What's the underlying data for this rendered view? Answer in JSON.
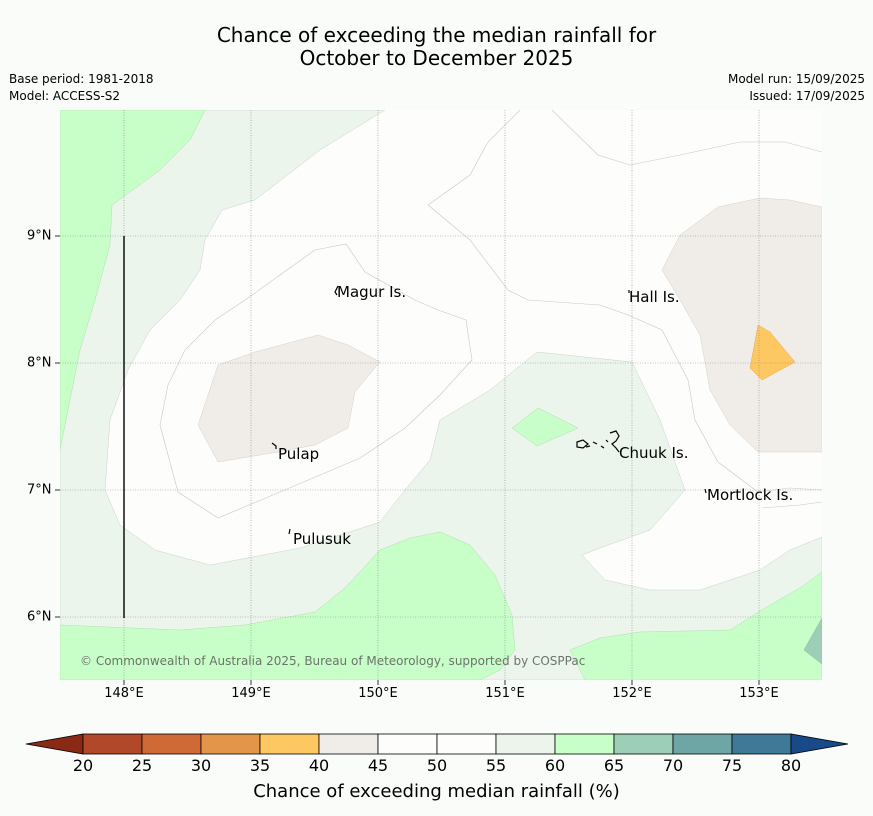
{
  "title": {
    "line1": "Chance of exceeding the median rainfall for",
    "line2": "October to December 2025"
  },
  "info": {
    "base_period": "Base period: 1981-2018",
    "model": "Model: ACCESS-S2",
    "model_run": "Model run: 15/09/2025",
    "issued": "Issued: 17/09/2025"
  },
  "map": {
    "lon_ticks": [
      "148°E",
      "149°E",
      "150°E",
      "151°E",
      "152°E",
      "153°E"
    ],
    "lat_ticks": [
      "9°N",
      "8°N",
      "7°N",
      "6°N"
    ],
    "places": [
      {
        "name": "Magur Is."
      },
      {
        "name": "Hall Is."
      },
      {
        "name": "Pulap"
      },
      {
        "name": "Chuuk Is."
      },
      {
        "name": "Mortlock Is."
      },
      {
        "name": "Pulusuk"
      }
    ],
    "copyright": "© Commonwealth of Australia 2025, Bureau of Meteorology, supported by COSPPac"
  },
  "colorbar": {
    "label": "Chance of exceeding median rainfall (%)",
    "ticks": [
      "20",
      "25",
      "30",
      "35",
      "40",
      "45",
      "50",
      "55",
      "60",
      "65",
      "70",
      "75",
      "80"
    ],
    "colors": {
      "below_20": "#8b2a14",
      "20_25": "#b2482a",
      "25_30": "#cf6a36",
      "30_35": "#e3954a",
      "35_40": "#fdc862",
      "40_45": "#f0ece7",
      "45_50": "#fdfefc",
      "50_55": "#fdfefc",
      "55_60": "#ebf5eb",
      "60_65": "#c8fec8",
      "65_70": "#9ccfb5",
      "70_75": "#6ea6a5",
      "75_80": "#407898",
      "above_80": "#174a86"
    }
  }
}
